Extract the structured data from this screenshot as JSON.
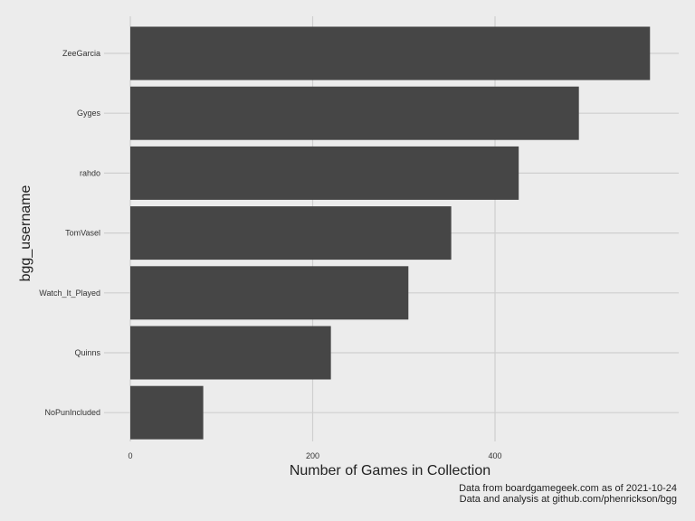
{
  "chart_data": {
    "type": "bar",
    "orientation": "horizontal",
    "categories": [
      "ZeeGarcia",
      "Gyges",
      "rahdo",
      "TomVasel",
      "Watch_It_Played",
      "Quinns",
      "NoPunIncluded"
    ],
    "values": [
      570,
      492,
      426,
      352,
      305,
      220,
      80
    ],
    "title": "",
    "xlabel": "Number of Games in Collection",
    "ylabel": "bgg_username",
    "xlim": [
      0,
      600
    ],
    "xticks": [
      0,
      200,
      400
    ],
    "grid": true,
    "legend": "none",
    "bar_color": "#464646",
    "grid_color": "#cfcfcf",
    "background_color": "#ececec",
    "caption": [
      "Data from boardgamegeek.com as of 2021-10-24",
      "Data and analysis at github.com/phenrickson/bgg"
    ]
  }
}
